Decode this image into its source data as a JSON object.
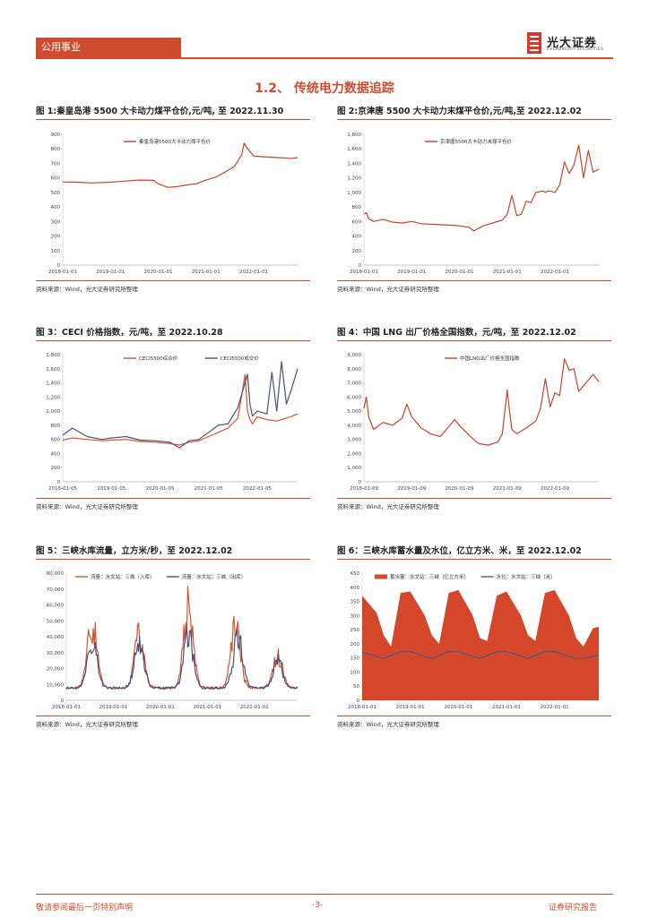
{
  "header": {
    "tag": "公用事业",
    "logo_cn": "光大证券",
    "logo_en": "EVERBRIGHT SECURITIES",
    "accent": "#ce4c2e"
  },
  "section_title": "1.2、 传统电力数据追踪",
  "figures": [
    {
      "title": "图 1:秦皇岛港 5500 大卡动力煤平仓价,元/吨, 至 2022.11.30",
      "source": "资料来源：Wind，光大证券研究所整理"
    },
    {
      "title": "图 2:京津唐 5500 大卡动力末煤平仓价,元/吨,至 2022.12.02",
      "source": "资料来源：Wind，光大证券研究所整理"
    },
    {
      "title": "图 3：CECI 价格指数，元/吨，至 2022.10.28",
      "source": "资料来源：Wind，光大证券研究所整理"
    },
    {
      "title": "图 4：中国 LNG 出厂价格全国指数，元/吨，至 2022.12.02",
      "source": "资料来源：Wind，光大证券研究所整理"
    },
    {
      "title": "图 5：三峡水库流量，立方米/秒，至 2022.12.02",
      "source": "资料来源：Wind，光大证券研究所整理"
    },
    {
      "title": "图 6：三峡水库蓄水量及水位，亿立方米、米，至 2022.12.02",
      "source": "资料来源：Wind，光大证券研究所整理"
    }
  ],
  "footer": {
    "left": "敬请参阅最后一页特别声明",
    "center": "-3-",
    "right": "证券研究报告"
  },
  "chart_data": [
    {
      "type": "line",
      "legend": [
        "秦皇岛港5500大卡动力煤平仓价"
      ],
      "color": "#c8432a",
      "yticks": [
        "0",
        "100",
        "200",
        "300",
        "400",
        "500",
        "600",
        "700",
        "800",
        "900"
      ],
      "ylim": [
        0,
        900
      ],
      "xticks": [
        "2018-01-01",
        "2019-01-01",
        "2020-01-01",
        "2021-01-01",
        "2022-01-01"
      ],
      "xlim": [
        2018.0,
        2022.92
      ],
      "series": [
        {
          "name": "秦皇岛港5500大卡动力煤平仓价",
          "x": [
            2018.0,
            2018.3,
            2018.6,
            2019.0,
            2019.3,
            2019.6,
            2019.9,
            2020.0,
            2020.2,
            2020.4,
            2020.6,
            2020.8,
            2021.0,
            2021.2,
            2021.4,
            2021.6,
            2021.75,
            2021.8,
            2021.85,
            2021.9,
            2022.0,
            2022.2,
            2022.5,
            2022.8,
            2022.92
          ],
          "y": [
            572,
            570,
            565,
            570,
            578,
            585,
            583,
            560,
            535,
            540,
            552,
            560,
            585,
            605,
            640,
            680,
            760,
            840,
            810,
            790,
            750,
            745,
            740,
            735,
            740
          ]
        }
      ]
    },
    {
      "type": "line",
      "legend": [
        "京津唐5500大卡动力末煤平仓价"
      ],
      "color": "#c8432a",
      "yticks": [
        "0",
        "200",
        "400",
        "600",
        "800",
        "1,000",
        "1,200",
        "1,400",
        "1,600",
        "1,800"
      ],
      "ylim": [
        0,
        1800
      ],
      "xticks": [
        "2018-01-01",
        "2019-01-01",
        "2020-01-01",
        "2021-01-01",
        "2022-01-01"
      ],
      "xlim": [
        2018.0,
        2022.92
      ],
      "series": [
        {
          "name": "京津唐5500大卡动力末煤平仓价",
          "x": [
            2018.0,
            2018.05,
            2018.1,
            2018.2,
            2018.4,
            2018.6,
            2018.8,
            2019.0,
            2019.2,
            2019.5,
            2019.8,
            2020.0,
            2020.2,
            2020.3,
            2020.5,
            2020.7,
            2020.9,
            2021.0,
            2021.1,
            2021.2,
            2021.3,
            2021.4,
            2021.5,
            2021.6,
            2021.75,
            2021.8,
            2021.85,
            2021.9,
            2022.0,
            2022.1,
            2022.2,
            2022.3,
            2022.4,
            2022.5,
            2022.6,
            2022.7,
            2022.8,
            2022.92
          ],
          "y": [
            700,
            720,
            640,
            600,
            630,
            590,
            580,
            600,
            570,
            560,
            550,
            540,
            520,
            470,
            540,
            580,
            620,
            700,
            960,
            680,
            700,
            880,
            860,
            1000,
            1020,
            1000,
            1020,
            1020,
            1000,
            1100,
            1420,
            1260,
            1380,
            1650,
            1200,
            1580,
            1280,
            1320
          ]
        }
      ]
    },
    {
      "type": "line",
      "legend": [
        "CECI5500综合价",
        "CECI5500成交价"
      ],
      "colors": [
        "#d9532c",
        "#4a4f7c"
      ],
      "yticks": [
        "0",
        "200",
        "400",
        "600",
        "800",
        "1,000",
        "1,200",
        "1,400",
        "1,600",
        "1,800"
      ],
      "ylim": [
        0,
        1800
      ],
      "xticks": [
        "2018-01-05",
        "2019-01-05",
        "2020-01-05",
        "2021-01-05",
        "2022-01-05"
      ],
      "xlim": [
        2018.0,
        2022.83
      ],
      "series": [
        {
          "name": "CECI5500综合价",
          "x": [
            2018.0,
            2018.2,
            2018.5,
            2018.8,
            2019.0,
            2019.3,
            2019.6,
            2019.9,
            2020.2,
            2020.4,
            2020.6,
            2020.8,
            2021.0,
            2021.2,
            2021.4,
            2021.6,
            2021.7,
            2021.75,
            2021.8,
            2021.85,
            2021.9,
            2022.0,
            2022.2,
            2022.4,
            2022.6,
            2022.83
          ],
          "y": [
            590,
            620,
            600,
            580,
            590,
            600,
            570,
            560,
            540,
            520,
            560,
            580,
            640,
            700,
            760,
            900,
            1300,
            1520,
            1000,
            880,
            820,
            920,
            880,
            860,
            900,
            960
          ]
        },
        {
          "name": "CECI5500成交价",
          "x": [
            2018.0,
            2018.2,
            2018.5,
            2018.8,
            2019.0,
            2019.3,
            2019.6,
            2019.9,
            2020.2,
            2020.4,
            2020.6,
            2020.8,
            2021.0,
            2021.2,
            2021.4,
            2021.6,
            2021.8,
            2021.85,
            2021.9,
            2022.0,
            2022.2,
            2022.3,
            2022.4,
            2022.5,
            2022.6,
            2022.7,
            2022.83
          ],
          "y": [
            660,
            760,
            640,
            600,
            620,
            640,
            590,
            580,
            560,
            480,
            580,
            600,
            700,
            800,
            820,
            1050,
            1520,
            1100,
            930,
            1000,
            960,
            1550,
            1000,
            1700,
            1100,
            1300,
            1600
          ]
        }
      ]
    },
    {
      "type": "line",
      "legend": [
        "中国LNG出厂价格全国指数"
      ],
      "color": "#c8432a",
      "yticks": [
        "0",
        "1,000",
        "2,000",
        "3,000",
        "4,000",
        "5,000",
        "6,000",
        "7,000",
        "8,000",
        "9,000"
      ],
      "ylim": [
        0,
        9000
      ],
      "xticks": [
        "2018-01-09",
        "2019-01-09",
        "2020-01-09",
        "2021-01-09",
        "2022-01-09"
      ],
      "xlim": [
        2018.0,
        2022.92
      ],
      "series": [
        {
          "name": "中国LNG出厂价格全国指数",
          "x": [
            2018.0,
            2018.05,
            2018.1,
            2018.2,
            2018.4,
            2018.6,
            2018.8,
            2018.9,
            2019.0,
            2019.2,
            2019.4,
            2019.6,
            2019.8,
            2019.9,
            2020.0,
            2020.2,
            2020.4,
            2020.6,
            2020.8,
            2020.9,
            2021.0,
            2021.05,
            2021.1,
            2021.2,
            2021.4,
            2021.6,
            2021.7,
            2021.8,
            2021.85,
            2021.9,
            2022.0,
            2022.1,
            2022.2,
            2022.3,
            2022.4,
            2022.5,
            2022.6,
            2022.7,
            2022.8,
            2022.92
          ],
          "y": [
            5200,
            6000,
            4600,
            3700,
            4200,
            4000,
            4500,
            5500,
            4600,
            3800,
            3400,
            3200,
            4000,
            4400,
            4000,
            3300,
            2700,
            2600,
            2800,
            3400,
            6500,
            5000,
            3700,
            3400,
            3800,
            4300,
            5200,
            7300,
            6300,
            5300,
            6300,
            6100,
            8700,
            7900,
            8000,
            6400,
            6800,
            7200,
            7600,
            7100
          ]
        }
      ]
    },
    {
      "type": "line",
      "legend": [
        "流量：水文站：三峡（入库）",
        "流量：水文站：三峡（出库）"
      ],
      "colors": [
        "#d9532c",
        "#4a4f7c"
      ],
      "yticks": [
        "0",
        "10,000",
        "20,000",
        "30,000",
        "40,000",
        "50,000",
        "60,000",
        "70,000",
        "80,000"
      ],
      "ylim": [
        0,
        80000
      ],
      "xticks": [
        "2018-01-01",
        "2019-01-01",
        "2020-01-01",
        "2021-01-01",
        "2022-01-01"
      ],
      "xlim": [
        2018.0,
        2022.92
      ],
      "series": [
        {
          "name": "流量：水文站：三峡（入库）",
          "peaks": [
            [
              2018.55,
              58000
            ],
            [
              2019.55,
              52000
            ],
            [
              2020.6,
              75000
            ],
            [
              2021.6,
              55000
            ],
            [
              2022.5,
              32000
            ]
          ]
        },
        {
          "name": "流量：水文站：三峡（出库）",
          "peaks": [
            [
              2018.55,
              45000
            ],
            [
              2019.55,
              44000
            ],
            [
              2020.6,
              49000
            ],
            [
              2021.65,
              48000
            ],
            [
              2022.5,
              28000
            ]
          ]
        }
      ]
    },
    {
      "type": "area",
      "legend": [
        "蓄水量：水文站：三峡（亿立方米）",
        "水位：水文站：三峡（米）"
      ],
      "colors": [
        "#d4472a",
        "#4a5a8c"
      ],
      "yticks": [
        "0",
        "50",
        "100",
        "150",
        "200",
        "250",
        "300",
        "350",
        "400",
        "450"
      ],
      "ylim": [
        0,
        450
      ],
      "xticks": [
        "2018-01-01",
        "2019-01-01",
        "2020-01-01",
        "2021-01-01",
        "2022-01-01"
      ],
      "xlim": [
        2018.0,
        2022.92
      ],
      "series": [
        {
          "name": "蓄水量：水文站：三峡（亿立方米）",
          "x": [
            2018.0,
            2018.3,
            2018.45,
            2018.6,
            2018.8,
            2019.0,
            2019.3,
            2019.45,
            2019.6,
            2019.8,
            2020.0,
            2020.3,
            2020.45,
            2020.6,
            2020.8,
            2021.0,
            2021.3,
            2021.45,
            2021.6,
            2021.8,
            2022.0,
            2022.3,
            2022.45,
            2022.6,
            2022.8,
            2022.92
          ],
          "y": [
            370,
            310,
            230,
            190,
            380,
            385,
            300,
            230,
            200,
            380,
            390,
            300,
            220,
            210,
            370,
            385,
            300,
            230,
            210,
            380,
            390,
            300,
            220,
            190,
            255,
            260
          ]
        },
        {
          "name": "水位：水文站：三峡（米）",
          "x": [
            2018.0,
            2018.45,
            2018.8,
            2019.0,
            2019.45,
            2019.8,
            2020.0,
            2020.45,
            2020.8,
            2021.0,
            2021.45,
            2021.8,
            2022.0,
            2022.45,
            2022.6,
            2022.92
          ],
          "y": [
            170,
            148,
            172,
            172,
            147,
            173,
            172,
            148,
            172,
            173,
            148,
            173,
            172,
            147,
            148,
            160
          ]
        }
      ]
    }
  ]
}
